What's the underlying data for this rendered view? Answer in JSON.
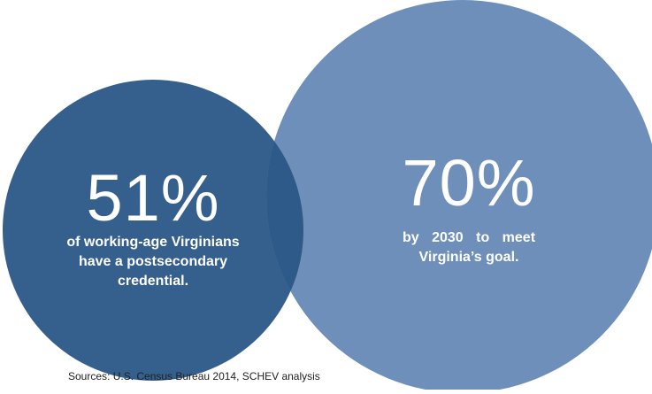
{
  "colors": {
    "left_circle": "#355f8c",
    "right_circle": "#6d8fba",
    "overlap": "#2e5a8a",
    "text": "#ffffff",
    "source_text": "#222222"
  },
  "left": {
    "value": "51%",
    "caption_line1": "of working-age Virginians",
    "caption_line2": "have a postsecondary",
    "caption_line3": "credential."
  },
  "right": {
    "value": "70%",
    "caption_line1": "by 2030 to meet",
    "caption_line2": "Virginia’s goal."
  },
  "source": "Sources: U.S. Census Bureau 2014, SCHEV analysis"
}
